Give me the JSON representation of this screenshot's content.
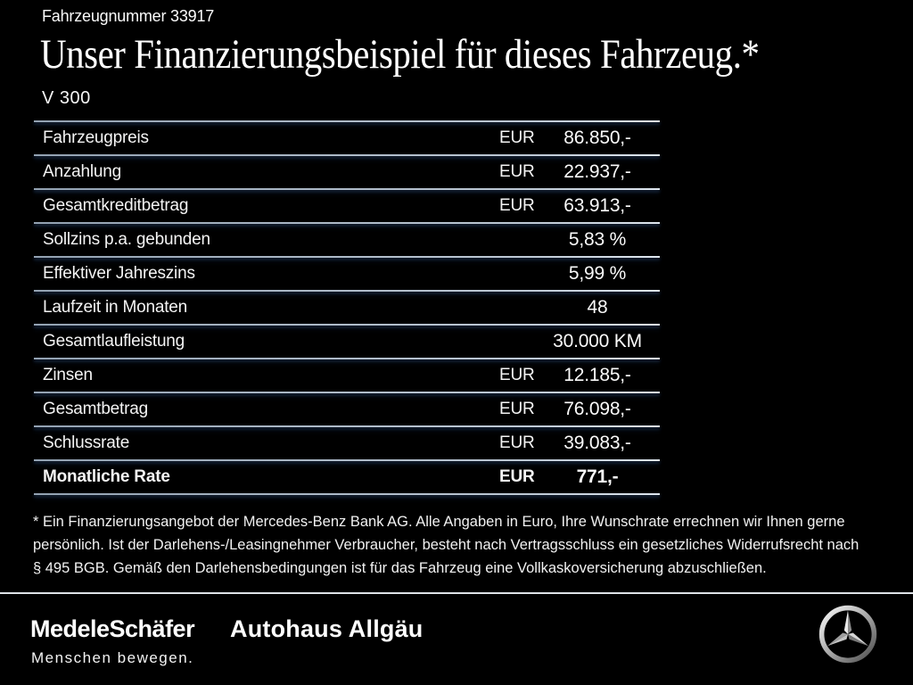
{
  "header": {
    "vehicle_number": "Fahrzeugnummer 33917",
    "title": "Unser Finanzierungsbeispiel für dieses Fahrzeug.*",
    "model": "V 300"
  },
  "finance_table": {
    "rows": [
      {
        "label": "Fahrzeugpreis",
        "currency": "EUR",
        "value": "86.850,-",
        "bold": false
      },
      {
        "label": "Anzahlung",
        "currency": "EUR",
        "value": "22.937,-",
        "bold": false
      },
      {
        "label": "Gesamtkreditbetrag",
        "currency": "EUR",
        "value": "63.913,-",
        "bold": false
      },
      {
        "label": "Sollzins p.a. gebunden",
        "currency": "",
        "value": "5,83 %",
        "bold": false
      },
      {
        "label": "Effektiver Jahreszins",
        "currency": "",
        "value": "5,99 %",
        "bold": false
      },
      {
        "label": "Laufzeit in Monaten",
        "currency": "",
        "value": "48",
        "bold": false
      },
      {
        "label": "Gesamtlaufleistung",
        "currency": "",
        "value": "30.000 KM",
        "bold": false
      },
      {
        "label": "Zinsen",
        "currency": "EUR",
        "value": "12.185,-",
        "bold": false
      },
      {
        "label": "Gesamtbetrag",
        "currency": "EUR",
        "value": "76.098,-",
        "bold": false
      },
      {
        "label": "Schlussrate",
        "currency": "EUR",
        "value": "39.083,-",
        "bold": false
      },
      {
        "label": "Monatliche Rate",
        "currency": "EUR",
        "value": "771,-",
        "bold": true
      }
    ]
  },
  "footnote": {
    "lines": [
      "* Ein Finanzierungsangebot der Mercedes-Benz Bank AG. Alle Angaben in Euro, Ihre Wunschrate errechnen wir Ihnen gerne",
      "persönlich. Ist der Darlehens-/Leasingnehmer Verbraucher, besteht nach Vertragsschluss ein gesetzliches Widerrufsrecht nach",
      "§ 495 BGB. Gemäß den Darlehensbedingungen ist für das Fahrzeug eine Vollkaskoversicherung abzuschließen."
    ]
  },
  "footer": {
    "dealer_logo": "MedeleSchäfer",
    "dealer_tagline": "Menschen bewegen.",
    "dealer2_logo": "Autohaus Allgäu",
    "brand_icon": "mercedes-star-icon"
  },
  "colors": {
    "background": "#000000",
    "text": "#f2f2f2",
    "separator": "#bfcad6",
    "separator_glow": "#1d3250",
    "footer_separator": "#dfe3e8"
  }
}
